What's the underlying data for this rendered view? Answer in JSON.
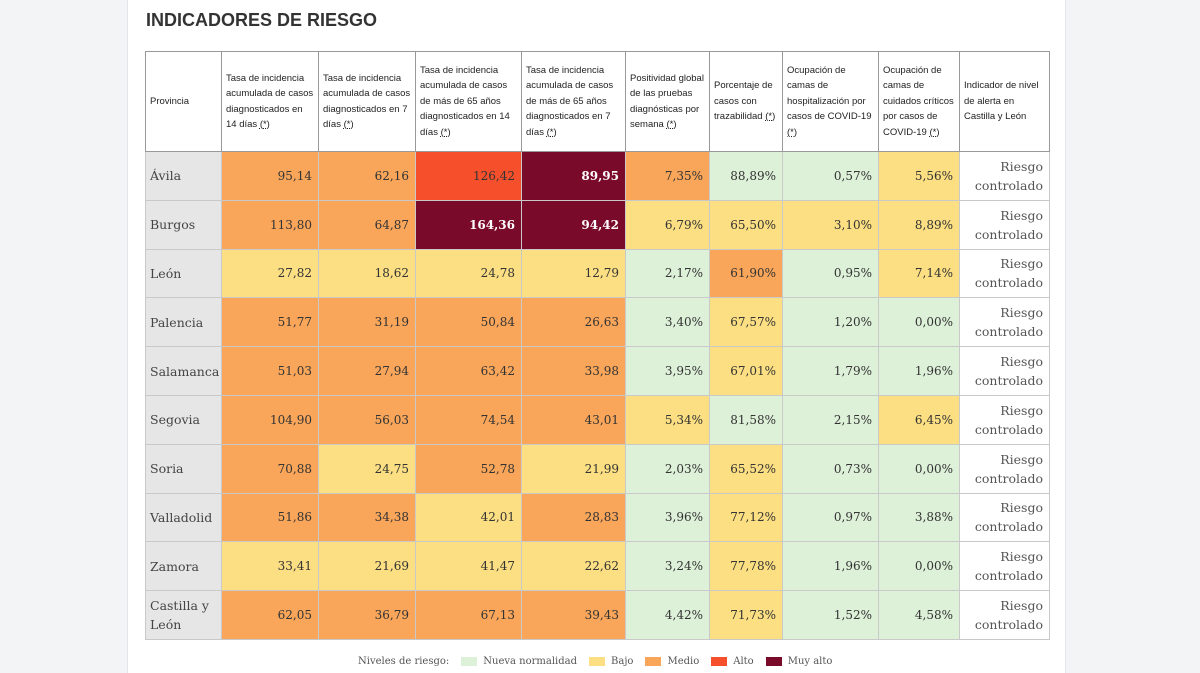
{
  "title": "INDICADORES DE RIESGO",
  "colors": {
    "nueva": "#ddf0d8",
    "bajo": "#fbdf82",
    "medio": "#f9a65a",
    "alto": "#f5502b",
    "muyalto": "#7a0a2a"
  },
  "table": {
    "headers": [
      "Provincia",
      "Tasa de incidencia acumulada de casos diagnosticados en 14 días",
      "Tasa de incidencia acumulada de casos diagnosticados en 7 días",
      "Tasa de incidencia acumulada de casos de más de 65 años diagnosticados en 14 días",
      "Tasa de incidencia acumulada de casos de más de 65 años diagnosticados en 7 días",
      "Positividad global de las pruebas diagnósticas por semana",
      "Porcentaje de casos con trazabilidad",
      "Ocupación de camas de hospitalización por casos de COVID-19",
      "Ocupación de camas de cuidados críticos por casos de COVID-19",
      "Indicador de nivel de alerta en Castilla y León"
    ],
    "note_marker": "(*)",
    "rows": [
      {
        "province": "Ávila",
        "values": [
          "95,14",
          "62,16",
          "126,42",
          "89,95",
          "7,35%",
          "88,89%",
          "0,57%",
          "5,56%"
        ],
        "levels": [
          "medio",
          "medio",
          "alto",
          "muyalto",
          "medio",
          "nueva",
          "nueva",
          "bajo"
        ],
        "alert": "Riesgo controlado"
      },
      {
        "province": "Burgos",
        "values": [
          "113,80",
          "64,87",
          "164,36",
          "94,42",
          "6,79%",
          "65,50%",
          "3,10%",
          "8,89%"
        ],
        "levels": [
          "medio",
          "medio",
          "muyalto",
          "muyalto",
          "bajo",
          "bajo",
          "bajo",
          "bajo"
        ],
        "alert": "Riesgo controlado"
      },
      {
        "province": "León",
        "values": [
          "27,82",
          "18,62",
          "24,78",
          "12,79",
          "2,17%",
          "61,90%",
          "0,95%",
          "7,14%"
        ],
        "levels": [
          "bajo",
          "bajo",
          "bajo",
          "bajo",
          "nueva",
          "medio",
          "nueva",
          "bajo"
        ],
        "alert": "Riesgo controlado"
      },
      {
        "province": "Palencia",
        "values": [
          "51,77",
          "31,19",
          "50,84",
          "26,63",
          "3,40%",
          "67,57%",
          "1,20%",
          "0,00%"
        ],
        "levels": [
          "medio",
          "medio",
          "medio",
          "medio",
          "nueva",
          "bajo",
          "nueva",
          "nueva"
        ],
        "alert": "Riesgo controlado"
      },
      {
        "province": "Salamanca",
        "values": [
          "51,03",
          "27,94",
          "63,42",
          "33,98",
          "3,95%",
          "67,01%",
          "1,79%",
          "1,96%"
        ],
        "levels": [
          "medio",
          "medio",
          "medio",
          "medio",
          "nueva",
          "bajo",
          "nueva",
          "nueva"
        ],
        "alert": "Riesgo controlado"
      },
      {
        "province": "Segovia",
        "values": [
          "104,90",
          "56,03",
          "74,54",
          "43,01",
          "5,34%",
          "81,58%",
          "2,15%",
          "6,45%"
        ],
        "levels": [
          "medio",
          "medio",
          "medio",
          "medio",
          "bajo",
          "nueva",
          "nueva",
          "bajo"
        ],
        "alert": "Riesgo controlado"
      },
      {
        "province": "Soria",
        "values": [
          "70,88",
          "24,75",
          "52,78",
          "21,99",
          "2,03%",
          "65,52%",
          "0,73%",
          "0,00%"
        ],
        "levels": [
          "medio",
          "bajo",
          "medio",
          "bajo",
          "nueva",
          "bajo",
          "nueva",
          "nueva"
        ],
        "alert": "Riesgo controlado"
      },
      {
        "province": "Valladolid",
        "values": [
          "51,86",
          "34,38",
          "42,01",
          "28,83",
          "3,96%",
          "77,12%",
          "0,97%",
          "3,88%"
        ],
        "levels": [
          "medio",
          "medio",
          "bajo",
          "medio",
          "nueva",
          "bajo",
          "nueva",
          "nueva"
        ],
        "alert": "Riesgo controlado"
      },
      {
        "province": "Zamora",
        "values": [
          "33,41",
          "21,69",
          "41,47",
          "22,62",
          "3,24%",
          "77,78%",
          "1,96%",
          "0,00%"
        ],
        "levels": [
          "bajo",
          "bajo",
          "bajo",
          "bajo",
          "nueva",
          "bajo",
          "nueva",
          "nueva"
        ],
        "alert": "Riesgo controlado"
      },
      {
        "province": "Castilla y León",
        "values": [
          "62,05",
          "36,79",
          "67,13",
          "39,43",
          "4,42%",
          "71,73%",
          "1,52%",
          "4,58%"
        ],
        "levels": [
          "medio",
          "medio",
          "medio",
          "medio",
          "nueva",
          "bajo",
          "nueva",
          "nueva"
        ],
        "alert": "Riesgo controlado"
      }
    ]
  },
  "legend": {
    "label": "Niveles de riesgo:",
    "items": [
      {
        "key": "nueva",
        "label": "Nueva normalidad"
      },
      {
        "key": "bajo",
        "label": "Bajo"
      },
      {
        "key": "medio",
        "label": "Medio"
      },
      {
        "key": "alto",
        "label": "Alto"
      },
      {
        "key": "muyalto",
        "label": "Muy alto"
      }
    ]
  }
}
